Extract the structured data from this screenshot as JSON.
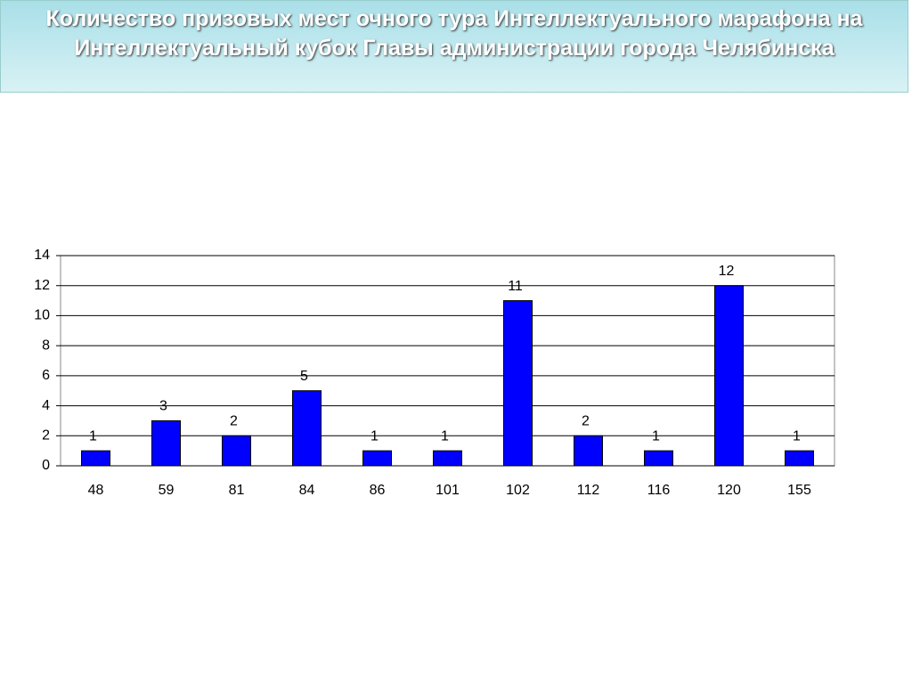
{
  "chart_data": {
    "type": "bar",
    "title": "Количество призовых мест очного тура Интеллектуального марафона на Интеллектуальный кубок Главы администрации города Челябинска",
    "categories": [
      "48",
      "59",
      "81",
      "84",
      "86",
      "101",
      "102",
      "112",
      "116",
      "120",
      "155"
    ],
    "values": [
      1,
      3,
      2,
      5,
      1,
      1,
      11,
      2,
      1,
      12,
      1
    ],
    "color": "#0000ff",
    "ylim": [
      0,
      14
    ],
    "yticks": [
      0,
      2,
      4,
      6,
      8,
      10,
      12,
      14
    ],
    "grid": true
  }
}
